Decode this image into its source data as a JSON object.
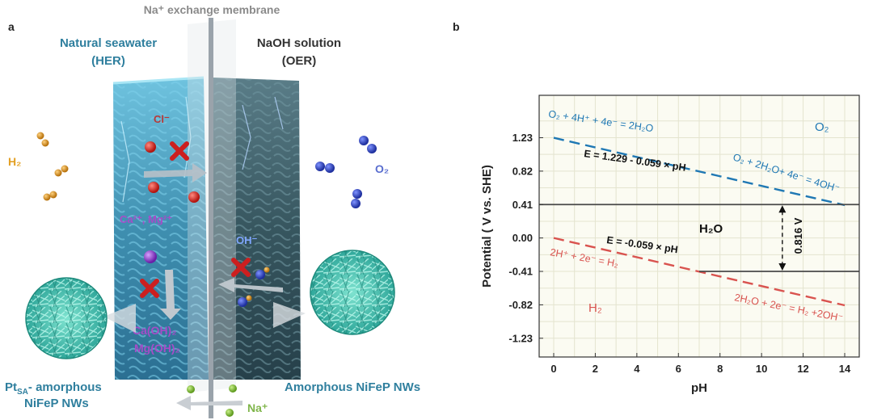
{
  "panel_a": {
    "panel_label": "a",
    "membrane_label": "Na⁺ exchange membrane",
    "left_title_1": "Natural seawater",
    "left_title_2": "(HER)",
    "right_title_1": "NaOH solution",
    "right_title_2": "(OER)",
    "h2_label": "H₂",
    "o2_label": "O₂",
    "cl_label": "Cl⁻",
    "ca_mg_label": "Ca²⁺, Mg²⁺",
    "oh_label": "OH⁻",
    "caoh_label": "Ca(OH)₂",
    "mgoh_label": "Mg(OH)₂",
    "na_label": "Na⁺",
    "left_catalyst_1": "Pt",
    "left_catalyst_sub": "SA",
    "left_catalyst_2": "- amorphous",
    "left_catalyst_3": "NiFeP NWs",
    "right_catalyst": "Amorphous NiFeP NWs",
    "colors": {
      "teal_text": "#2f7f9e",
      "dark_text": "#333333",
      "purple_text": "#a64cc8",
      "h2_text": "#e3a024",
      "o2_text": "#5a6ecf",
      "na_text": "#7fb54a",
      "ion_red": "#c8231c",
      "cross_red": "#cc1f1f"
    }
  },
  "panel_b": {
    "panel_label": "b",
    "chart_data": {
      "type": "line",
      "xlabel": "pH",
      "ylabel": "Potential ( V vs. SHE)",
      "xlim": [
        -0.7,
        14.7
      ],
      "ylim": [
        -1.46,
        1.75
      ],
      "x_ticks": [
        "0",
        "2",
        "4",
        "6",
        "8",
        "10",
        "12",
        "14"
      ],
      "y_ticks": [
        "1.23",
        "0.82",
        "0.41",
        "0.00",
        "-0.41",
        "-0.82",
        "-1.23"
      ],
      "grid": true,
      "series": [
        {
          "kind": "dashed",
          "color": "#1f78b4",
          "x": [
            0,
            14
          ],
          "y": [
            1.229,
            0.403
          ]
        },
        {
          "kind": "dashed",
          "color": "#d9534f",
          "x": [
            0,
            14
          ],
          "y": [
            0.0,
            -0.826
          ]
        },
        {
          "kind": "solid",
          "color": "#4a4a4a",
          "x": [
            -0.7,
            14.7
          ],
          "y": [
            0.41,
            0.41
          ]
        },
        {
          "kind": "solid",
          "color": "#4a4a4a",
          "x": [
            7,
            14.7
          ],
          "y": [
            -0.41,
            -0.41
          ]
        }
      ],
      "annotations": {
        "o2_reaction_acid": "O₂ + 4H⁺ + 4e⁻ = 2H₂O",
        "o2_reaction_base": "O₂ + 2H₂O+ 4e⁻ = 4OH⁻",
        "o2_equation": "E = 1.229 - 0.059 × pH",
        "o2_region": "O₂",
        "h2o_region": "H₂O",
        "h2_equation": "E = -0.059 × pH",
        "h2_reaction_acid": "2H⁺ + 2e⁻ = H₂",
        "h2_reaction_base": "2H₂O + 2e⁻ = H₂ +2OH⁻",
        "h2_region": "H₂",
        "gap_label": "0.816 V"
      }
    }
  }
}
